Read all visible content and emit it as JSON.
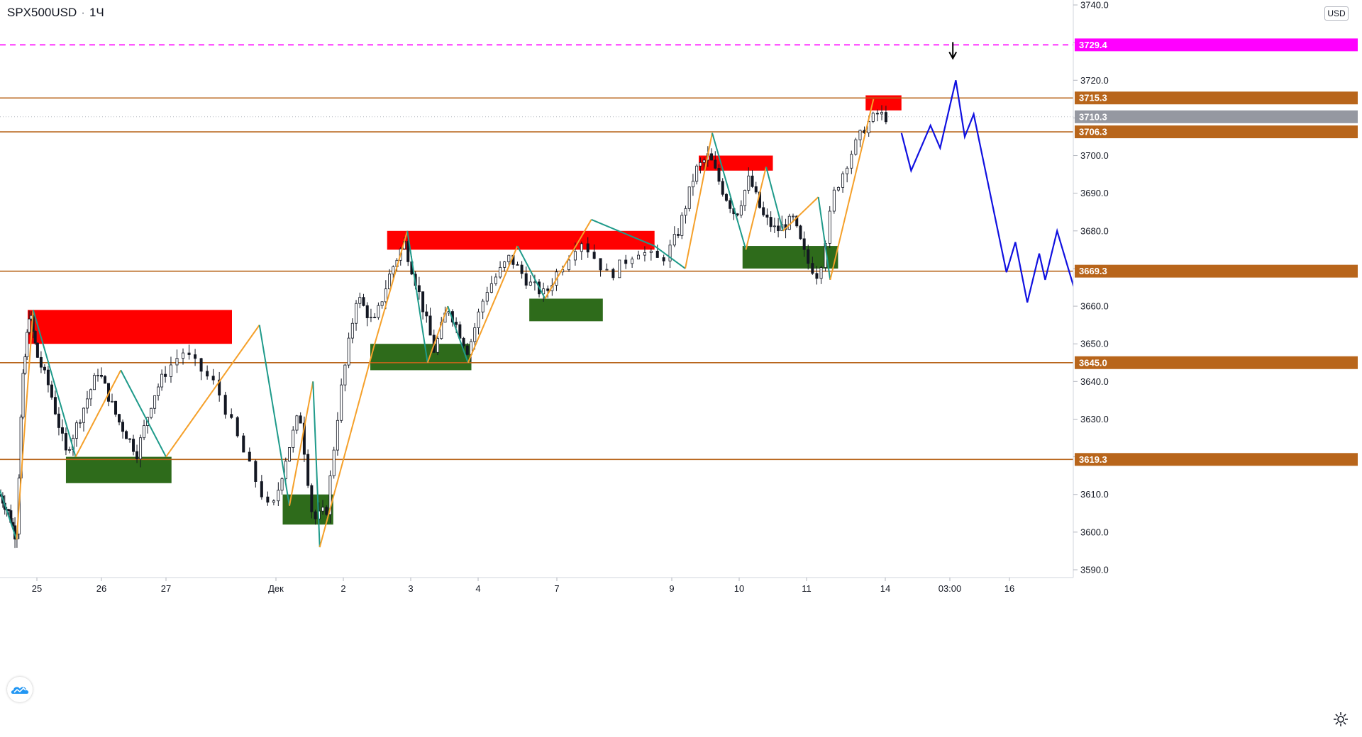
{
  "header": {
    "symbol": "SPX500USD",
    "interval": "1Ч",
    "separator": "·"
  },
  "price_scale": {
    "currency": "USD"
  },
  "colors": {
    "level_line": "#b8651b",
    "magenta_line": "#ff00ff",
    "supply_zone": "#ff0000",
    "demand_zone": "#2e6b1b",
    "zigzag_up": "#f5a02a",
    "zigzag_down": "#1e9a8a",
    "forecast": "#1010e0",
    "candles": "#131722",
    "label_green": "#22cc22",
    "label_red": "#ff0000",
    "label_black": "#000000"
  },
  "chart_data": {
    "type": "candlestick",
    "instrument": "SPX500USD",
    "timeframe": "1Ч",
    "ylim": [
      3587,
      3742
    ],
    "y_ticks": [
      3590.0,
      3600.0,
      3610.0,
      3620.0,
      3630.0,
      3640.0,
      3650.0,
      3660.0,
      3670.0,
      3680.0,
      3690.0,
      3700.0,
      3710.0,
      3720.0,
      3730.0,
      3740.0
    ],
    "x_ticks": [
      "25",
      "26",
      "27",
      "Дек",
      "2",
      "3",
      "4",
      "7",
      "9",
      "10",
      "11",
      "14",
      "03:00",
      "16"
    ],
    "current_price": 3710.3,
    "price_path": [
      {
        "t": 0.0,
        "p": 3610
      },
      {
        "t": 0.25,
        "p": 3605
      },
      {
        "t": 0.45,
        "p": 3598
      },
      {
        "t": 0.6,
        "p": 3638
      },
      {
        "t": 0.8,
        "p": 3659
      },
      {
        "t": 1.0,
        "p": 3647
      },
      {
        "t": 1.2,
        "p": 3638
      },
      {
        "t": 1.45,
        "p": 3621
      },
      {
        "t": 1.7,
        "p": 3632
      },
      {
        "t": 1.95,
        "p": 3643
      },
      {
        "t": 2.25,
        "p": 3630
      },
      {
        "t": 2.55,
        "p": 3621
      },
      {
        "t": 2.8,
        "p": 3636
      },
      {
        "t": 3.15,
        "p": 3648
      },
      {
        "t": 3.45,
        "p": 3639
      },
      {
        "t": 3.75,
        "p": 3618
      },
      {
        "t": 3.95,
        "p": 3605
      },
      {
        "t": 4.15,
        "p": 3620
      },
      {
        "t": 4.35,
        "p": 3632
      },
      {
        "t": 4.55,
        "p": 3603
      },
      {
        "t": 4.75,
        "p": 3606
      },
      {
        "t": 4.95,
        "p": 3636
      },
      {
        "t": 5.2,
        "p": 3663
      },
      {
        "t": 5.45,
        "p": 3655
      },
      {
        "t": 5.7,
        "p": 3669
      },
      {
        "t": 5.9,
        "p": 3677
      },
      {
        "t": 6.1,
        "p": 3665
      },
      {
        "t": 6.35,
        "p": 3648
      },
      {
        "t": 6.55,
        "p": 3660
      },
      {
        "t": 6.85,
        "p": 3648
      },
      {
        "t": 7.1,
        "p": 3664
      },
      {
        "t": 7.4,
        "p": 3673
      },
      {
        "t": 7.65,
        "p": 3666
      },
      {
        "t": 7.85,
        "p": 3663
      },
      {
        "t": 8.05,
        "p": 3671
      },
      {
        "t": 8.2,
        "p": 3678
      },
      {
        "t": 8.45,
        "p": 3668
      },
      {
        "t": 8.7,
        "p": 3675
      },
      {
        "t": 8.9,
        "p": 3672
      },
      {
        "t": 9.1,
        "p": 3680
      },
      {
        "t": 9.35,
        "p": 3696
      },
      {
        "t": 9.55,
        "p": 3700
      },
      {
        "t": 9.75,
        "p": 3691
      },
      {
        "t": 9.95,
        "p": 3684
      },
      {
        "t": 10.15,
        "p": 3694
      },
      {
        "t": 10.35,
        "p": 3684
      },
      {
        "t": 10.55,
        "p": 3680
      },
      {
        "t": 10.8,
        "p": 3683
      },
      {
        "t": 11.0,
        "p": 3672
      },
      {
        "t": 11.15,
        "p": 3668
      },
      {
        "t": 11.35,
        "p": 3690
      },
      {
        "t": 11.55,
        "p": 3700
      },
      {
        "t": 11.75,
        "p": 3708
      },
      {
        "t": 11.9,
        "p": 3711
      },
      {
        "t": 12.05,
        "p": 3710
      }
    ],
    "horizontal_levels": [
      3715.3,
      3706.3,
      3669.3,
      3645.0,
      3619.3
    ],
    "dashed_level": 3729.4,
    "axis_tags": [
      {
        "value": "3729.4",
        "price": 3729.4,
        "bg": "#ff00ff",
        "fg": "#ffffff"
      },
      {
        "value": "3715.3",
        "price": 3715.3,
        "bg": "#b8651b",
        "fg": "#ffffff"
      },
      {
        "value": "3710.3",
        "price": 3710.3,
        "bg": "#9598a1",
        "fg": "#ffffff"
      },
      {
        "value": "3706.3",
        "price": 3706.3,
        "bg": "#b8651b",
        "fg": "#ffffff"
      },
      {
        "value": "3669.3",
        "price": 3669.3,
        "bg": "#b8651b",
        "fg": "#ffffff"
      },
      {
        "value": "3645.0",
        "price": 3645.0,
        "bg": "#b8651b",
        "fg": "#ffffff"
      },
      {
        "value": "3619.3",
        "price": 3619.3,
        "bg": "#b8651b",
        "fg": "#ffffff"
      }
    ],
    "callouts": [
      {
        "text": "3729.4",
        "price": 3729.4,
        "t": 16.3,
        "color": "#22cc22"
      },
      {
        "text": "3715.3",
        "price": 3715.3,
        "t": 16.3,
        "color": "#ff0000"
      },
      {
        "text": "3645.0",
        "price": 3645.0,
        "t": 16.3,
        "color": "#000000"
      },
      {
        "text": "3619.3",
        "price": 3619.3,
        "t": 16.35,
        "color": "#000000"
      }
    ],
    "supply_zones": [
      {
        "t0": 0.75,
        "t1": 3.6,
        "top": 3659,
        "bottom": 3650
      },
      {
        "t0": 5.65,
        "t1": 8.85,
        "top": 3680,
        "bottom": 3675
      },
      {
        "t0": 9.4,
        "t1": 10.5,
        "top": 3700,
        "bottom": 3696
      },
      {
        "t0": 11.75,
        "t1": 12.25,
        "top": 3716,
        "bottom": 3712
      }
    ],
    "demand_zones": [
      {
        "t0": 1.45,
        "t1": 3.05,
        "top": 3620,
        "bottom": 3613
      },
      {
        "t0": 4.1,
        "t1": 4.85,
        "top": 3610,
        "bottom": 3602
      },
      {
        "t0": 5.4,
        "t1": 6.9,
        "top": 3650,
        "bottom": 3643
      },
      {
        "t0": 7.65,
        "t1": 8.4,
        "top": 3662,
        "bottom": 3656
      },
      {
        "t0": 10.05,
        "t1": 11.4,
        "top": 3676,
        "bottom": 3670
      }
    ],
    "zigzag": [
      {
        "t": 0.0,
        "p": 3611
      },
      {
        "t": 0.45,
        "p": 3598
      },
      {
        "t": 0.9,
        "p": 3659
      },
      {
        "t": 1.6,
        "p": 3620
      },
      {
        "t": 2.3,
        "p": 3643
      },
      {
        "t": 3.0,
        "p": 3620
      },
      {
        "t": 3.85,
        "p": 3655
      },
      {
        "t": 4.2,
        "p": 3607
      },
      {
        "t": 4.55,
        "p": 3640
      },
      {
        "t": 4.65,
        "p": 3596
      },
      {
        "t": 5.45,
        "p": 3649
      },
      {
        "t": 5.95,
        "p": 3680
      },
      {
        "t": 6.25,
        "p": 3645
      },
      {
        "t": 6.55,
        "p": 3660
      },
      {
        "t": 6.85,
        "p": 3645
      },
      {
        "t": 7.5,
        "p": 3676
      },
      {
        "t": 7.85,
        "p": 3662
      },
      {
        "t": 8.3,
        "p": 3683
      },
      {
        "t": 8.85,
        "p": 3676
      },
      {
        "t": 9.2,
        "p": 3670
      },
      {
        "t": 9.6,
        "p": 3706
      },
      {
        "t": 10.1,
        "p": 3675
      },
      {
        "t": 10.4,
        "p": 3697
      },
      {
        "t": 10.65,
        "p": 3680
      },
      {
        "t": 11.15,
        "p": 3689
      },
      {
        "t": 11.3,
        "p": 3667
      },
      {
        "t": 11.85,
        "p": 3715
      }
    ],
    "forecast_path": [
      {
        "t": 12.25,
        "p": 3706
      },
      {
        "t": 12.4,
        "p": 3696
      },
      {
        "t": 12.7,
        "p": 3708
      },
      {
        "t": 12.85,
        "p": 3702
      },
      {
        "t": 13.1,
        "p": 3720
      },
      {
        "t": 13.25,
        "p": 3705
      },
      {
        "t": 13.4,
        "p": 3711
      },
      {
        "t": 13.95,
        "p": 3669
      },
      {
        "t": 14.1,
        "p": 3677
      },
      {
        "t": 14.3,
        "p": 3661
      },
      {
        "t": 14.5,
        "p": 3674
      },
      {
        "t": 14.6,
        "p": 3667
      },
      {
        "t": 14.8,
        "p": 3680
      },
      {
        "t": 15.1,
        "p": 3664
      },
      {
        "t": 15.2,
        "p": 3669
      },
      {
        "t": 15.75,
        "p": 3633
      },
      {
        "t": 15.9,
        "p": 3641
      },
      {
        "t": 16.3,
        "p": 3620
      }
    ],
    "arrow_marker": {
      "t": 13.05,
      "p": 3726
    }
  }
}
